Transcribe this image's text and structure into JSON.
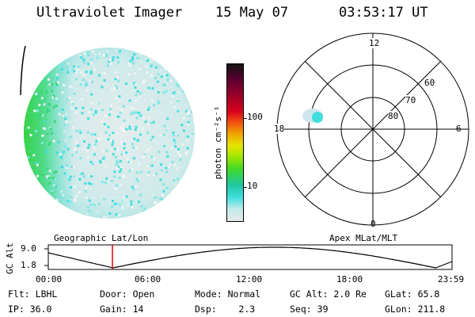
{
  "header": {
    "instrument": "Ultraviolet Imager",
    "date": "15 May 07",
    "time": "03:53:17 UT"
  },
  "colorbar": {
    "label": "photon cm⁻²s⁻¹",
    "ticks": [
      "100",
      "10"
    ],
    "colors": [
      "#141414",
      "#5a0030",
      "#9a0028",
      "#d8001c",
      "#f05010",
      "#f0a000",
      "#e6e600",
      "#a0e600",
      "#40d82a",
      "#20c8a0",
      "#40dede",
      "#bfeaea",
      "#e8e8e8"
    ]
  },
  "polar": {
    "labels": {
      "top": "12",
      "bottom": "0",
      "left": "18",
      "right": "6"
    },
    "lat_labels": [
      "60",
      "70",
      "80"
    ]
  },
  "timeline": {
    "left_title": "Geographic Lat/Lon",
    "right_title": "Apex MLat/MLT",
    "y_label": "GC Alt",
    "y_ticks": [
      "9.0",
      "1.8"
    ],
    "x_ticks": [
      "00:00",
      "06:00",
      "12:00",
      "18:00",
      "23:59"
    ],
    "marker_time": "03:53",
    "marker_color": "#e00000"
  },
  "info": {
    "row1": [
      {
        "key": "Flt:",
        "val": "LBHL"
      },
      {
        "key": "Door:",
        "val": "Open"
      },
      {
        "key": "Mode:",
        "val": "Normal"
      },
      {
        "key": "GC Alt:",
        "val": "2.0 Re"
      },
      {
        "key": "GLat:",
        "val": "65.8"
      }
    ],
    "row2": [
      {
        "key": "IP:",
        "val": "36.0"
      },
      {
        "key": "Gain:",
        "val": "14"
      },
      {
        "key": "Dsp:",
        "val": "2.3"
      },
      {
        "key": "Seq:",
        "val": "39"
      },
      {
        "key": "GLon:",
        "val": "211.8"
      }
    ]
  }
}
